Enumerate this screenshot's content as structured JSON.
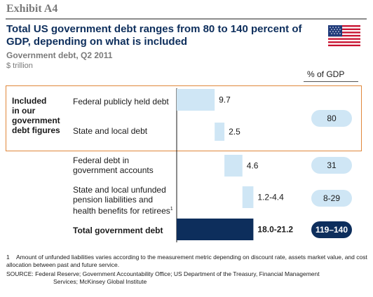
{
  "header": {
    "exhibit": "Exhibit A4",
    "title": "Total US government debt ranges from 80 to 140 percent of GDP, depending on what is included",
    "subtitle": "Government debt, Q2 2011",
    "unit": "$ trillion",
    "flag_icon": "us-flag-icon"
  },
  "gdp_column": {
    "header": "% of GDP"
  },
  "group_label": {
    "line1": "Included",
    "line2": "in our",
    "line3": "government",
    "line4": "debt figures"
  },
  "chart_data": {
    "type": "bar",
    "subtype": "waterfall",
    "title": "Total US government debt ranges from 80 to 140 percent of GDP, depending on what is included",
    "subtitle": "Government debt, Q2 2011",
    "unit": "$ trillion",
    "categories": [
      "Federal publicly held debt",
      "State and local debt",
      "Federal debt in government accounts",
      "State and local unfunded pension liabilities and health benefits for retirees",
      "Total government debt"
    ],
    "values": [
      9.7,
      2.5,
      4.6,
      2.8,
      19.6
    ],
    "value_labels": [
      "9.7",
      "2.5",
      "4.6",
      "1.2-4.4",
      "18.0-21.2"
    ],
    "gdp_percent_labels": [
      "80",
      "31",
      "8-29",
      "119–140"
    ],
    "colors": {
      "step": "#cfe6f5",
      "total": "#0d2e5c",
      "box_outline": "#e0873a"
    },
    "xlim": [
      0,
      21.5
    ]
  },
  "rows": [
    {
      "line1": "Federal publicly held debt"
    },
    {
      "line1": "State and local debt"
    },
    {
      "line1": "Federal debt in",
      "line2": "government accounts"
    },
    {
      "line1": "State and local unfunded",
      "line2": "pension liabilities and",
      "line3": "health benefits for retirees",
      "sup": "1"
    },
    {
      "line1": "Total government debt"
    }
  ],
  "footnote": {
    "num": "1",
    "text": "Amount of unfunded liabilities varies according to the measurement metric depending on discount rate, assets market value, and cost allocation between past and future service."
  },
  "source": {
    "line1": "SOURCE: Federal Reserve; Government Accountability Office; US Department of the Treasury, Financial Management",
    "line2": "Services; McKinsey Global Institute"
  }
}
